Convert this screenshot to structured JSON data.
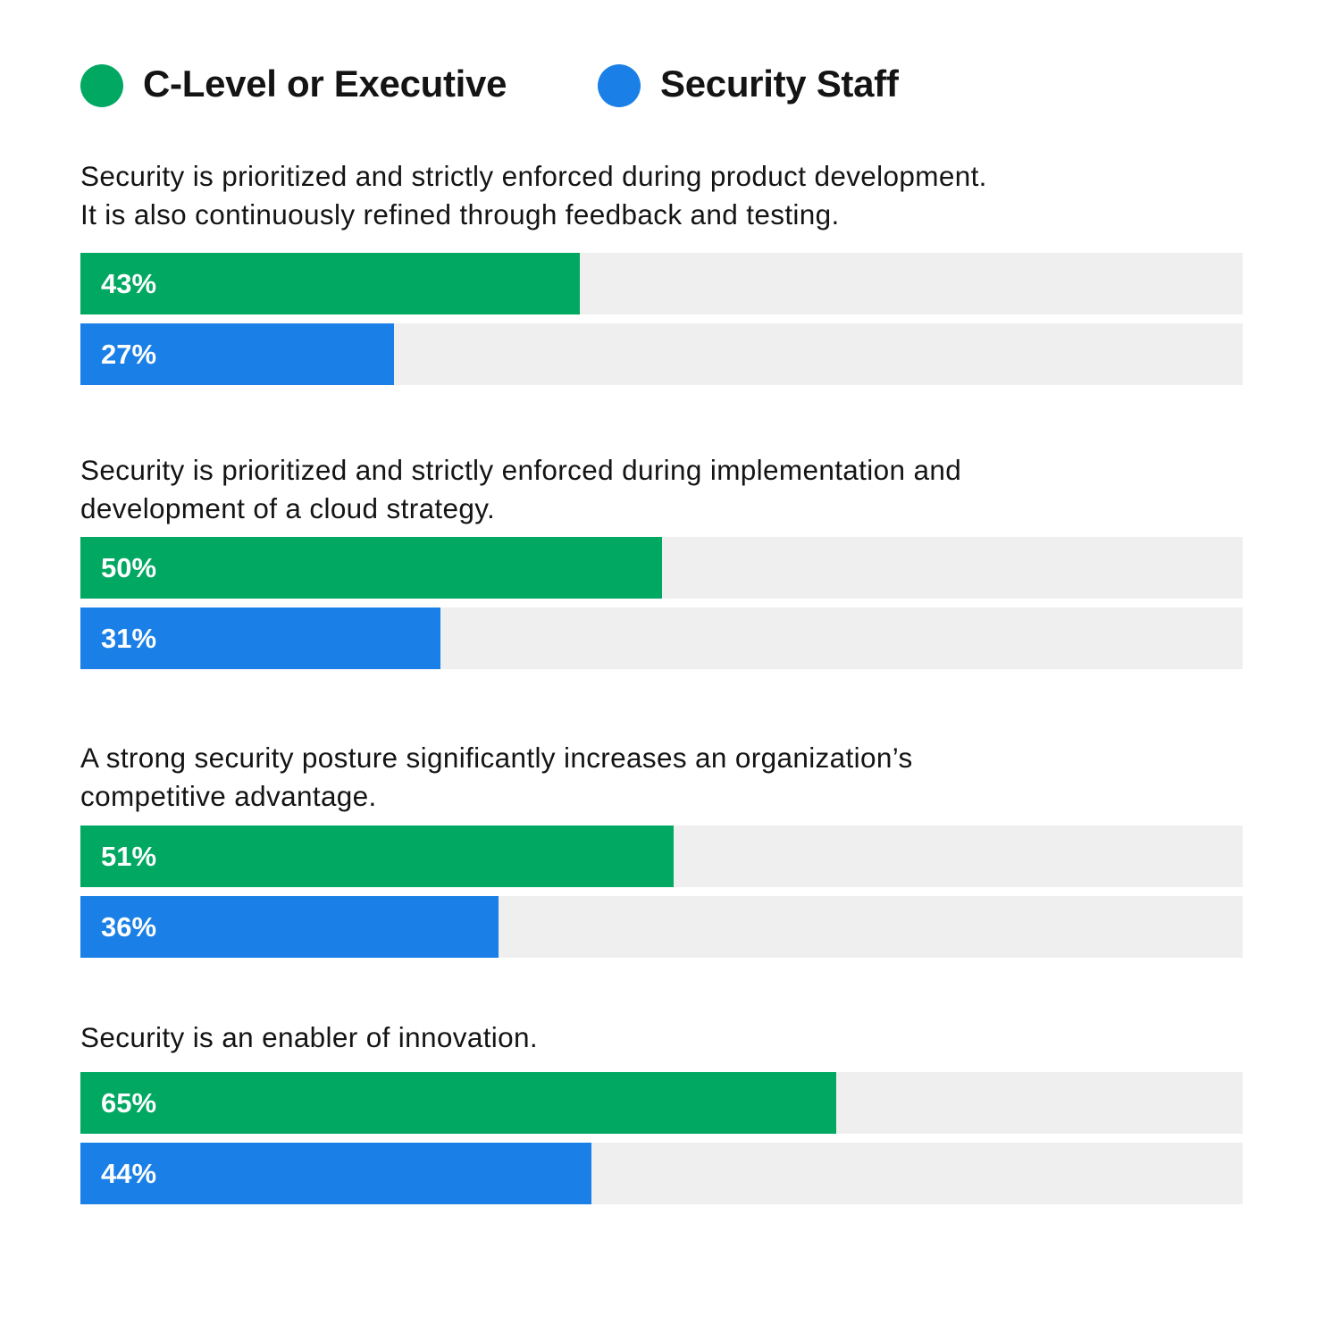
{
  "colors": {
    "exec": "#00a862",
    "staff": "#1a7fe6",
    "track": "#efefef",
    "text": "#141414"
  },
  "legend": [
    {
      "label": "C-Level or Executive",
      "color": "#00a862"
    },
    {
      "label": "Security Staff",
      "color": "#1a7fe6"
    }
  ],
  "chart_data": {
    "type": "bar",
    "orientation": "horizontal",
    "unit": "%",
    "xlim": [
      0,
      100
    ],
    "grid": false,
    "legend_position": "top-left",
    "categories": [
      [
        "Security is prioritized and strictly enforced during product development.",
        "It is also continuously refined through feedback and testing."
      ],
      [
        "Security is prioritized and strictly enforced during implementation and",
        "development of a cloud strategy."
      ],
      [
        "A strong security posture significantly increases an organization’s",
        "competitive advantage."
      ],
      [
        "Security is an enabler of innovation."
      ]
    ],
    "series": [
      {
        "name": "C-Level or Executive",
        "color": "#00a862",
        "values": [
          43,
          50,
          51,
          65
        ],
        "labels": [
          "43%",
          "50%",
          "51%",
          "65%"
        ]
      },
      {
        "name": "Security Staff",
        "color": "#1a7fe6",
        "values": [
          27,
          31,
          36,
          44
        ],
        "labels": [
          "27%",
          "31%",
          "36%",
          "44%"
        ]
      }
    ]
  }
}
